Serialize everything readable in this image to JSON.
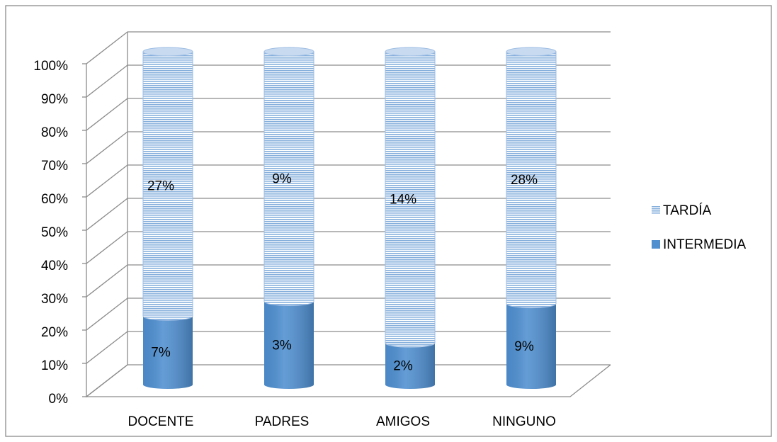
{
  "chart_data": {
    "type": "cylinder",
    "stacking": "percent",
    "categories": [
      "DOCENTE",
      "PADRES",
      "AMIGOS",
      "NINGUNO"
    ],
    "series": [
      {
        "name": "INTERMEDIA",
        "color": "#4f8fd0",
        "values": [
          7,
          3,
          2,
          9
        ],
        "value_labels": [
          "7%",
          "3%",
          "2%",
          "9%"
        ]
      },
      {
        "name": "TARDÍA",
        "color": "#a9c8ea",
        "values": [
          27,
          9,
          14,
          28
        ],
        "value_labels": [
          "27%",
          "9%",
          "14%",
          "28%"
        ]
      }
    ],
    "ylim": [
      0,
      100
    ],
    "yticks": [
      {
        "value": 0,
        "label": "0%"
      },
      {
        "value": 10,
        "label": "10%"
      },
      {
        "value": 20,
        "label": "20%"
      },
      {
        "value": 30,
        "label": "30%"
      },
      {
        "value": 40,
        "label": "40%"
      },
      {
        "value": 50,
        "label": "50%"
      },
      {
        "value": 60,
        "label": "60%"
      },
      {
        "value": 70,
        "label": "70%"
      },
      {
        "value": 80,
        "label": "80%"
      },
      {
        "value": 90,
        "label": "90%"
      },
      {
        "value": 100,
        "label": "100%"
      }
    ],
    "grid": true,
    "legend": "right"
  }
}
